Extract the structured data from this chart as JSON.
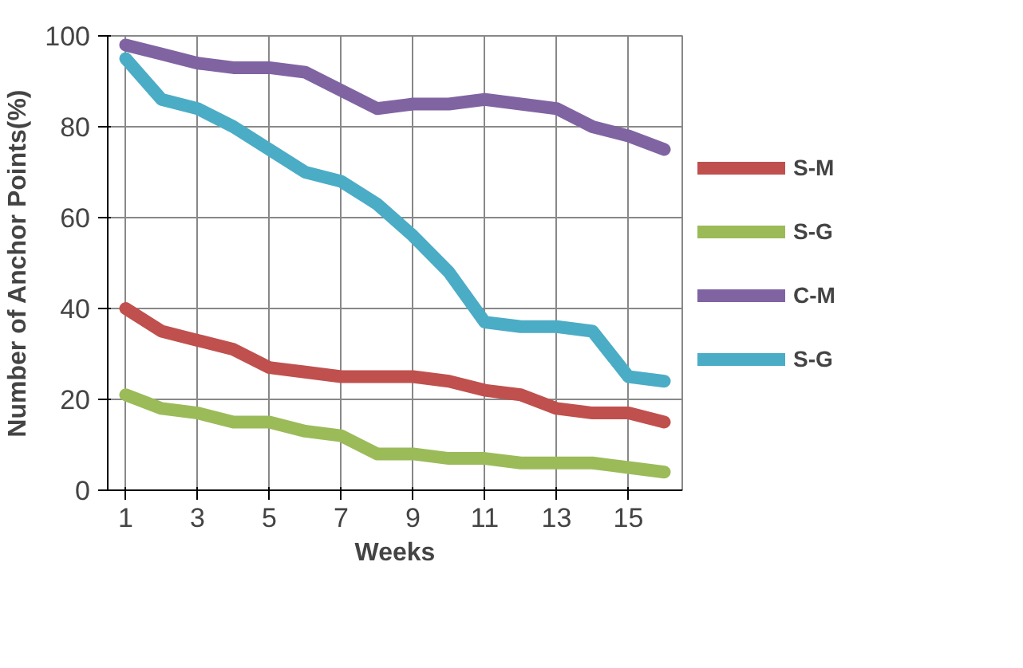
{
  "chart_data": {
    "type": "line",
    "xlabel": "Weeks",
    "ylabel": "Number of Anchor Points(%)",
    "x": [
      1,
      2,
      3,
      4,
      5,
      6,
      7,
      8,
      9,
      10,
      11,
      12,
      13,
      14,
      15,
      16
    ],
    "xlim": [
      0.5,
      16.5
    ],
    "xticks": [
      1,
      3,
      5,
      7,
      9,
      11,
      13,
      15
    ],
    "ylim": [
      0,
      100
    ],
    "yticks": [
      0,
      20,
      40,
      60,
      80,
      100
    ],
    "grid": true,
    "legend": "right",
    "marker": "none",
    "line_style": "solid",
    "series": [
      {
        "name": "S-M",
        "color": "#c0504d",
        "values": [
          40,
          35,
          33,
          31,
          27,
          26,
          25,
          25,
          25,
          24,
          22,
          21,
          18,
          17,
          17,
          15
        ]
      },
      {
        "name": "S-G",
        "color": "#9bbb59",
        "values": [
          21,
          18,
          17,
          15,
          15,
          13,
          12,
          8,
          8,
          7,
          7,
          6,
          6,
          6,
          5,
          4
        ]
      },
      {
        "name": "C-M",
        "color": "#8064a2",
        "values": [
          98,
          96,
          94,
          93,
          93,
          92,
          88,
          84,
          85,
          85,
          86,
          85,
          84,
          80,
          78,
          75
        ]
      },
      {
        "name": "S-G",
        "color": "#4bacc6",
        "values": [
          95,
          86,
          84,
          80,
          75,
          70,
          68,
          63,
          56,
          48,
          37,
          36,
          36,
          35,
          25,
          24
        ]
      }
    ]
  }
}
